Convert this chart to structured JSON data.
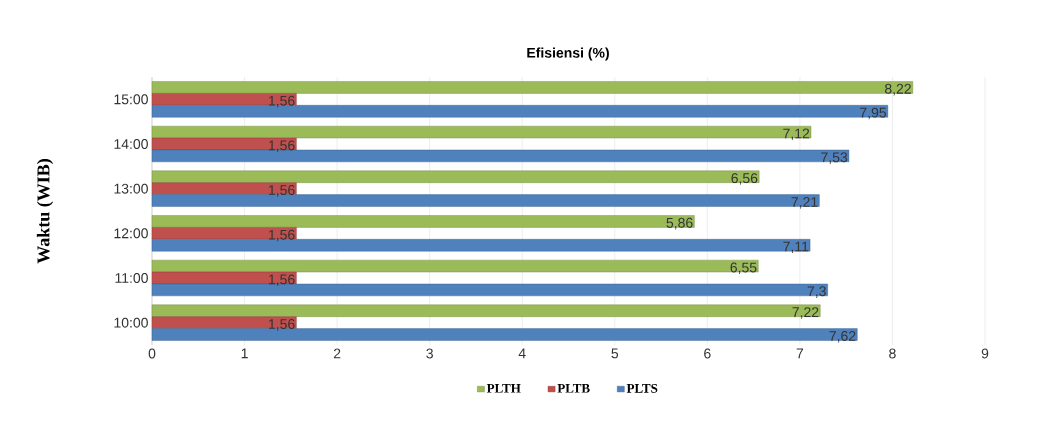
{
  "chart_data": {
    "type": "bar",
    "orientation": "horizontal",
    "title": "Efisiensi (%)",
    "ylabel": "Waktu (WIB)",
    "categories": [
      "15:00",
      "14:00",
      "13:00",
      "12:00",
      "11:00",
      "10:00"
    ],
    "series": [
      {
        "name": "PLTH",
        "color": "#9bbb59",
        "values": [
          8.22,
          7.12,
          6.56,
          5.86,
          6.55,
          7.22
        ],
        "value_labels": [
          "8,22",
          "7,12",
          "6,56",
          "5,86",
          "6,55",
          "7,22"
        ]
      },
      {
        "name": "PLTB",
        "color": "#c0504d",
        "values": [
          1.56,
          1.56,
          1.56,
          1.56,
          1.56,
          1.56
        ],
        "value_labels": [
          "1,56",
          "1,56",
          "1,56",
          "1,56",
          "1,56",
          "1,56"
        ]
      },
      {
        "name": "PLTS",
        "color": "#4f81bd",
        "values": [
          7.95,
          7.53,
          7.21,
          7.11,
          7.3,
          7.62
        ],
        "value_labels": [
          "7,95",
          "7,53",
          "7,21",
          "7,11",
          "7,3",
          "7,62"
        ]
      }
    ],
    "xlim": [
      0,
      9
    ],
    "xticks": [
      0,
      1,
      2,
      3,
      4,
      5,
      6,
      7,
      8,
      9
    ],
    "grid": "x",
    "legend": "bottom"
  }
}
